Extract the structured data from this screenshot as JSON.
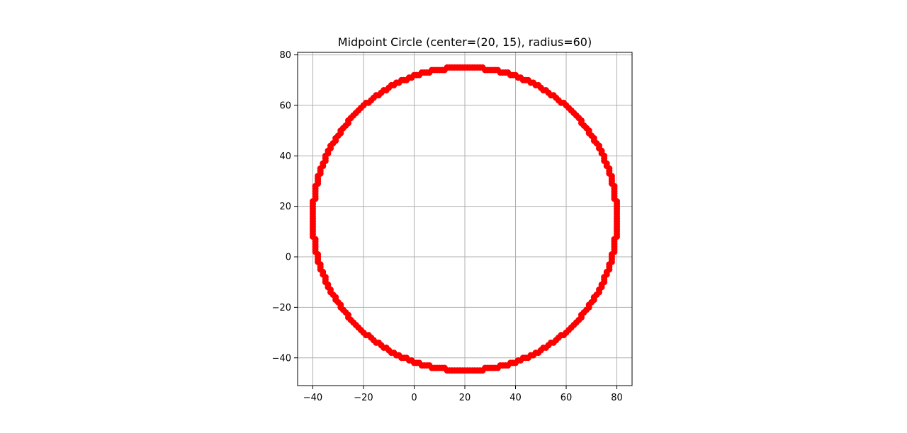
{
  "chart_data": {
    "type": "scatter",
    "title": "Midpoint Circle (center=(20, 15), radius=60)",
    "xlabel": "",
    "ylabel": "",
    "xlim": [
      -46,
      86
    ],
    "ylim": [
      -51,
      81
    ],
    "xticks": [
      -40,
      -20,
      0,
      20,
      40,
      60,
      80
    ],
    "yticks": [
      -40,
      -20,
      0,
      20,
      40,
      60,
      80
    ],
    "xtick_labels": [
      "−40",
      "−20",
      "0",
      "20",
      "40",
      "60",
      "80"
    ],
    "ytick_labels": [
      "−40",
      "−20",
      "0",
      "20",
      "40",
      "60",
      "80"
    ],
    "grid": true,
    "legend": "none",
    "aspect": "equal",
    "marker": "circle",
    "series": [
      {
        "color": "#ff0000",
        "algorithm": "midpoint-circle",
        "center": [
          20,
          15
        ],
        "radius": 60
      }
    ],
    "colors": {
      "series": "#ff0000",
      "grid": "#b0b0b0",
      "axes": "#000000",
      "background": "#ffffff"
    }
  }
}
